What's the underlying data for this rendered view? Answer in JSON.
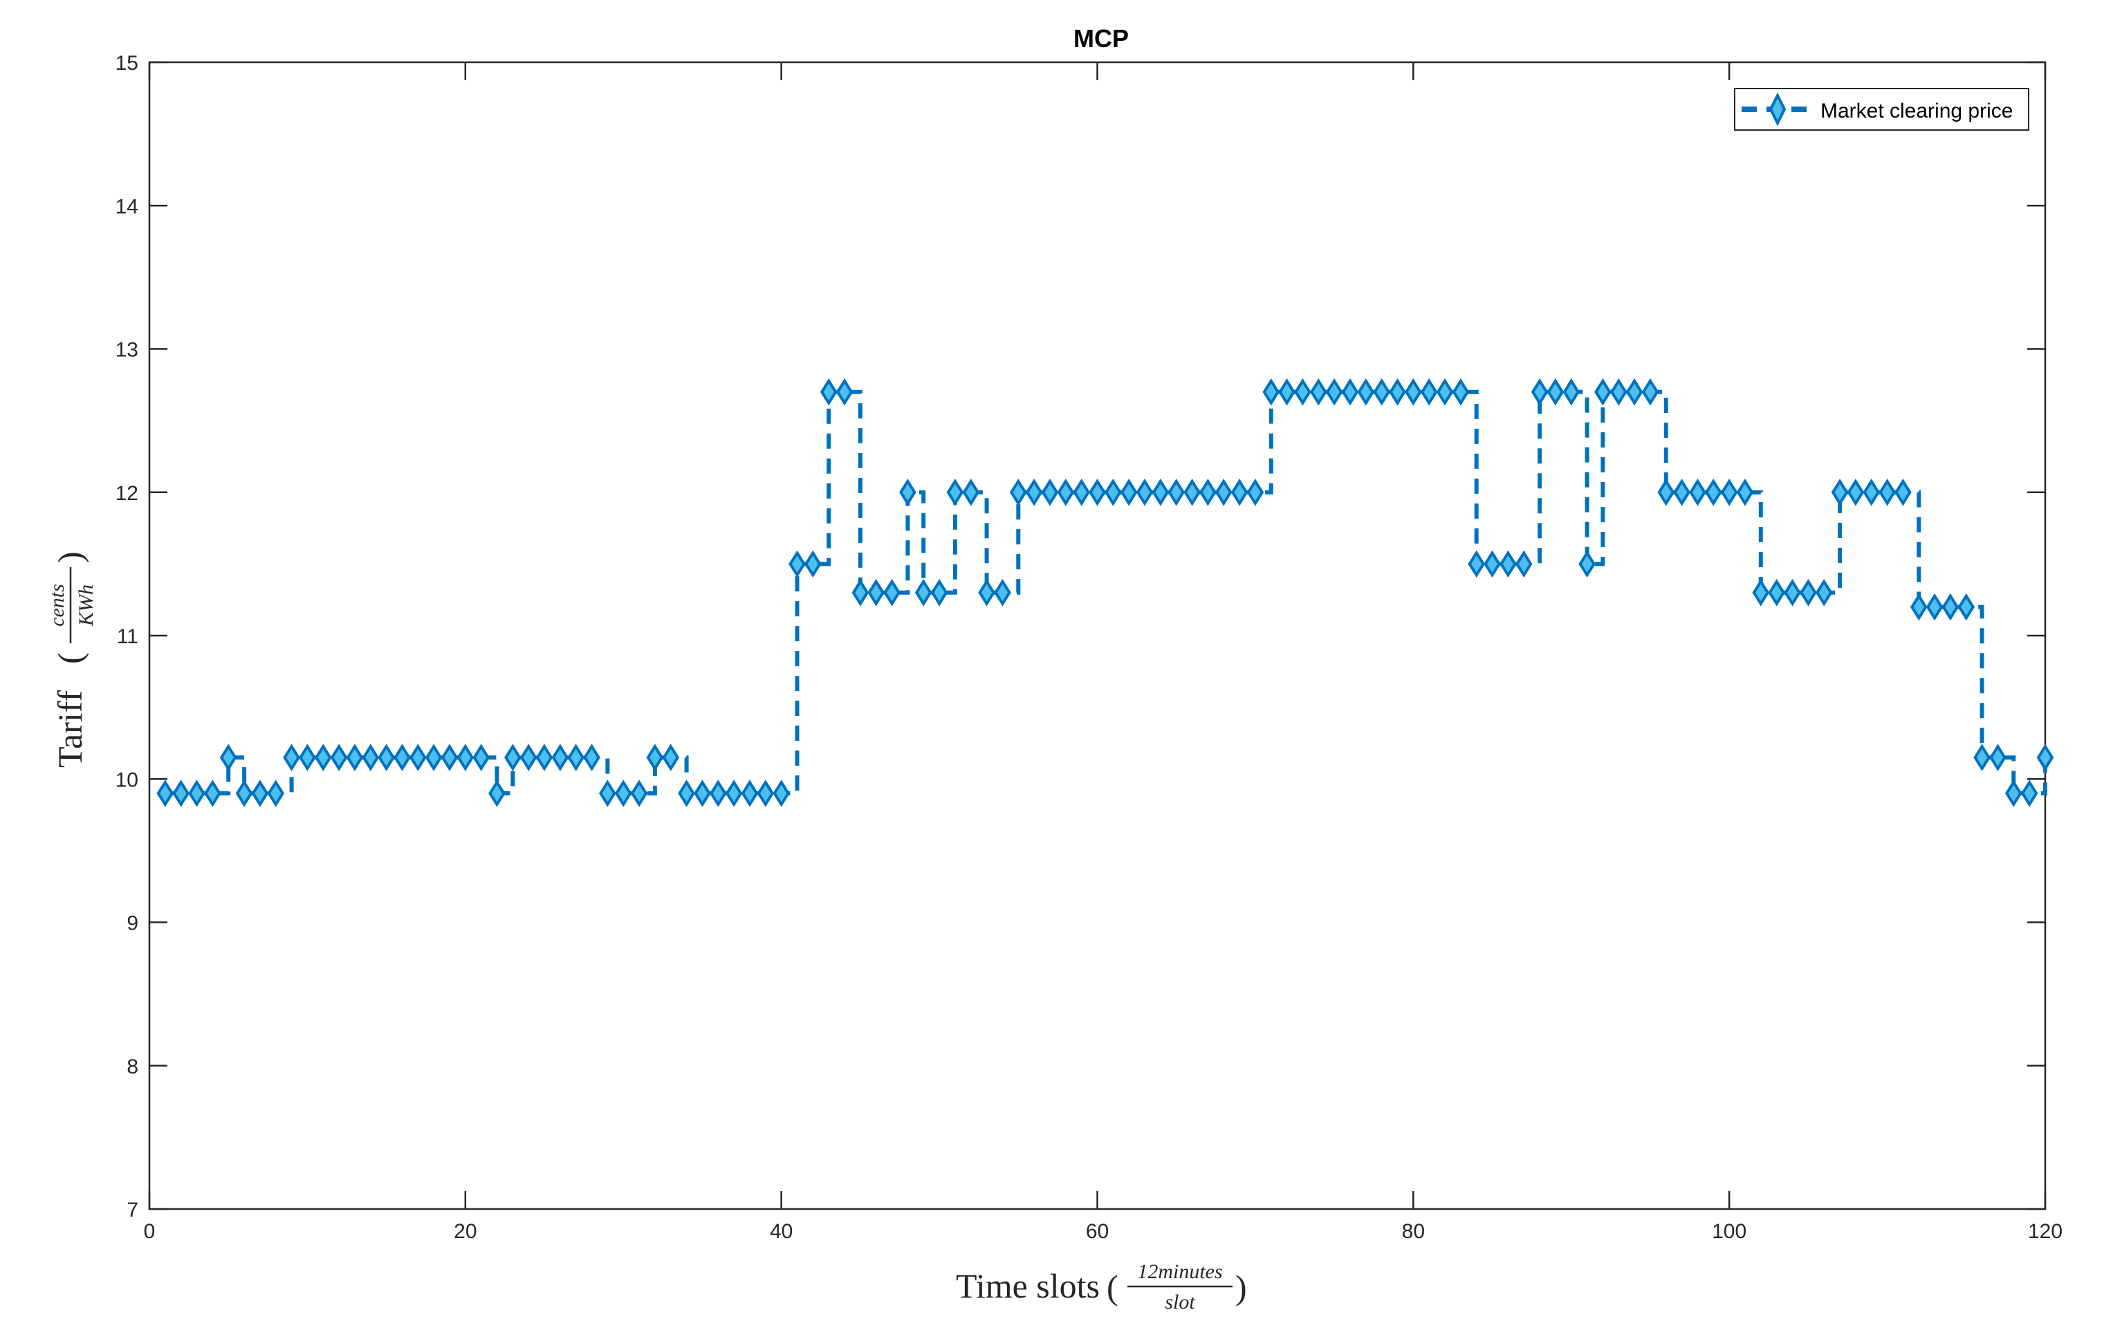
{
  "chart_data": {
    "type": "line",
    "title": "MCP",
    "xlabel": {
      "prefix": "Time slots",
      "frac_num": "12minutes",
      "frac_den": "slot"
    },
    "ylabel": {
      "prefix": "Tariff",
      "frac_num": "cents",
      "frac_den": "KWh"
    },
    "xlim": [
      0,
      120
    ],
    "ylim": [
      7,
      15
    ],
    "xticks": [
      "0",
      "20",
      "40",
      "60",
      "80",
      "100",
      "120"
    ],
    "yticks": [
      "7",
      "8",
      "9",
      "10",
      "11",
      "12",
      "13",
      "14",
      "15"
    ],
    "grid": false,
    "legend_position": "top-right",
    "line_style": "dashed-stairs",
    "marker": "diamond",
    "series": [
      {
        "name": "Market clearing price",
        "color": "#0072BD",
        "marker_fill": "#4DBEEE",
        "x": [
          1,
          2,
          3,
          4,
          5,
          6,
          7,
          8,
          9,
          10,
          11,
          12,
          13,
          14,
          15,
          16,
          17,
          18,
          19,
          20,
          21,
          22,
          23,
          24,
          25,
          26,
          27,
          28,
          29,
          30,
          31,
          32,
          33,
          34,
          35,
          36,
          37,
          38,
          39,
          40,
          41,
          42,
          43,
          44,
          45,
          46,
          47,
          48,
          49,
          50,
          51,
          52,
          53,
          54,
          55,
          56,
          57,
          58,
          59,
          60,
          61,
          62,
          63,
          64,
          65,
          66,
          67,
          68,
          69,
          70,
          71,
          72,
          73,
          74,
          75,
          76,
          77,
          78,
          79,
          80,
          81,
          82,
          83,
          84,
          85,
          86,
          87,
          88,
          89,
          90,
          91,
          92,
          93,
          94,
          95,
          96,
          97,
          98,
          99,
          100,
          101,
          102,
          103,
          104,
          105,
          106,
          107,
          108,
          109,
          110,
          111,
          112,
          113,
          114,
          115,
          116,
          117,
          118,
          119,
          120
        ],
        "values": [
          9.9,
          9.9,
          9.9,
          9.9,
          10.15,
          9.9,
          9.9,
          9.9,
          10.15,
          10.15,
          10.15,
          10.15,
          10.15,
          10.15,
          10.15,
          10.15,
          10.15,
          10.15,
          10.15,
          10.15,
          10.15,
          9.9,
          10.15,
          10.15,
          10.15,
          10.15,
          10.15,
          10.15,
          9.9,
          9.9,
          9.9,
          10.15,
          10.15,
          9.9,
          9.9,
          9.9,
          9.9,
          9.9,
          9.9,
          9.9,
          11.5,
          11.5,
          12.7,
          12.7,
          11.3,
          11.3,
          11.3,
          12.0,
          11.3,
          11.3,
          12.0,
          12.0,
          11.3,
          11.3,
          12.0,
          12.0,
          12.0,
          12.0,
          12.0,
          12.0,
          12.0,
          12.0,
          12.0,
          12.0,
          12.0,
          12.0,
          12.0,
          12.0,
          12.0,
          12.0,
          12.7,
          12.7,
          12.7,
          12.7,
          12.7,
          12.7,
          12.7,
          12.7,
          12.7,
          12.7,
          12.7,
          12.7,
          12.7,
          11.5,
          11.5,
          11.5,
          11.5,
          12.7,
          12.7,
          12.7,
          11.5,
          12.7,
          12.7,
          12.7,
          12.7,
          12.0,
          12.0,
          12.0,
          12.0,
          12.0,
          12.0,
          11.3,
          11.3,
          11.3,
          11.3,
          11.3,
          12.0,
          12.0,
          12.0,
          12.0,
          12.0,
          11.2,
          11.2,
          11.2,
          11.2,
          10.15,
          10.15,
          9.9,
          9.9,
          10.15
        ]
      }
    ]
  }
}
